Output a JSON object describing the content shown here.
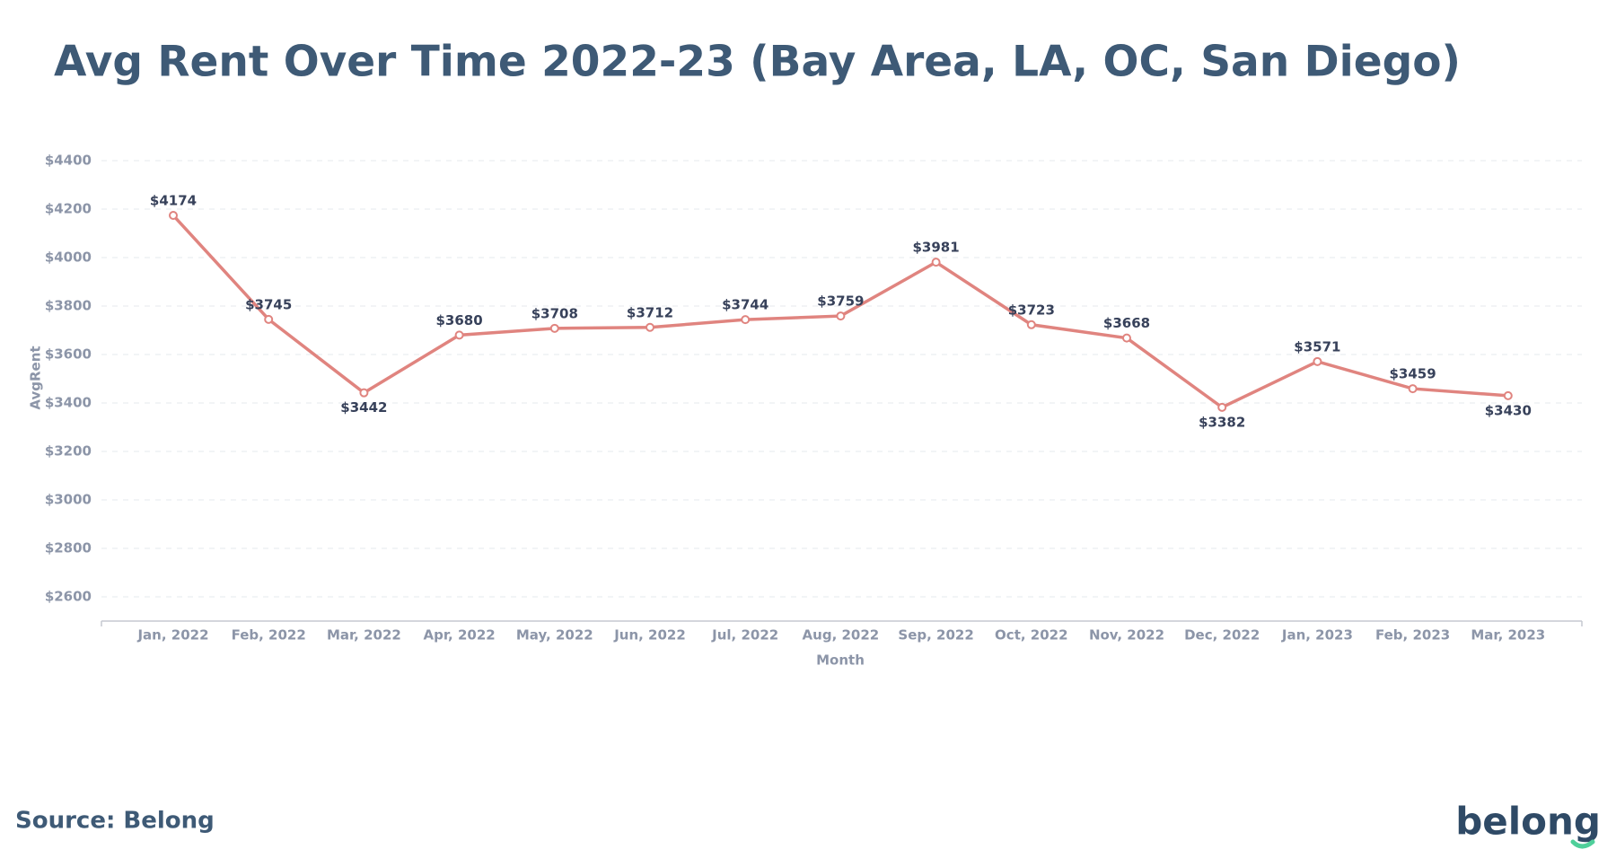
{
  "chart_data": {
    "type": "line",
    "title": "Avg Rent Over Time 2022-23 (Bay Area, LA, OC, San Diego)",
    "x_label": "Month",
    "y_label": "AvgRent",
    "categories": [
      "Jan, 2022",
      "Feb, 2022",
      "Mar, 2022",
      "Apr, 2022",
      "May, 2022",
      "Jun, 2022",
      "Jul, 2022",
      "Aug, 2022",
      "Sep, 2022",
      "Oct, 2022",
      "Nov, 2022",
      "Dec, 2022",
      "Jan, 2023",
      "Feb, 2023",
      "Mar, 2023"
    ],
    "series": [
      {
        "name": "AvgRent",
        "color": "#e0847f",
        "values": [
          4174,
          3745,
          3442,
          3680,
          3708,
          3712,
          3744,
          3759,
          3981,
          3723,
          3668,
          3382,
          3571,
          3459,
          3430
        ],
        "value_labels": [
          "$4174",
          "$3745",
          "$3442",
          "$3680",
          "$3708",
          "$3712",
          "$3744",
          "$3759",
          "$3981",
          "$3723",
          "$3668",
          "$3382",
          "$3571",
          "$3459",
          "$3430"
        ]
      }
    ],
    "ylim": [
      2500,
      4400
    ],
    "yticks": [
      {
        "value": 2600,
        "label": "$2600"
      },
      {
        "value": 2800,
        "label": "$2800"
      },
      {
        "value": 3000,
        "label": "$3000"
      },
      {
        "value": 3200,
        "label": "$3200"
      },
      {
        "value": 3400,
        "label": "$3400"
      },
      {
        "value": 3600,
        "label": "$3600"
      },
      {
        "value": 3800,
        "label": "$3800"
      },
      {
        "value": 4000,
        "label": "$4000"
      },
      {
        "value": 4200,
        "label": "$4200"
      },
      {
        "value": 4400,
        "label": "$4400"
      }
    ],
    "grid": true
  },
  "footer": {
    "source": "Source: Belong",
    "logo": "belong"
  }
}
